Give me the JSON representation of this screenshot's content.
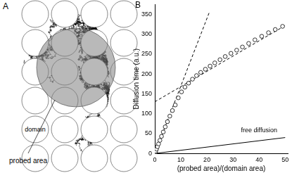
{
  "panel_a": {
    "label": "A",
    "domain_label": "domain",
    "probed_area_label": "probed area"
  },
  "chart_data": {
    "type": "scatter",
    "title": "B",
    "x_label": "(probed area)/(domain area)",
    "y_label": "Diffusion time (a.u.)",
    "xlim": [
      0,
      51
    ],
    "xticks": [
      0,
      10,
      20,
      30,
      40,
      50
    ],
    "ylim": [
      0,
      375
    ],
    "yticks": [
      0,
      50,
      100,
      150,
      200,
      250,
      300,
      350
    ],
    "grid": false,
    "series": [
      {
        "type": "scatter",
        "marker": "circle",
        "color": "#000000",
        "x": [
          0.04,
          0.16,
          0.36,
          0.64,
          1,
          1.44,
          1.96,
          2.56,
          3.24,
          4,
          4.84,
          5.76,
          6.76,
          7.84,
          9,
          10.24,
          11.56,
          12.96,
          14.44,
          16,
          17.6,
          19.4,
          21.2,
          23,
          25,
          27,
          29.2,
          31.4,
          33.6,
          36,
          38.4,
          41,
          43.6,
          46.2,
          49
        ],
        "values": [
          1,
          3,
          6,
          11,
          17,
          24,
          33,
          43,
          54,
          67,
          80,
          94,
          108,
          122,
          140,
          155,
          167,
          177,
          187,
          196,
          204,
          212,
          220,
          228,
          236,
          244,
          252,
          260,
          268,
          277,
          286,
          295,
          304,
          312,
          320
        ]
      },
      {
        "type": "line",
        "line_style": "dashed",
        "color": "#000000",
        "x": [
          0,
          21
        ],
        "values": [
          0,
          357
        ]
      },
      {
        "type": "line",
        "line_style": "dashed",
        "color": "#000000",
        "x": [
          0,
          50
        ],
        "values": [
          130,
          322
        ]
      },
      {
        "type": "line",
        "line_style": "solid",
        "color": "#000000",
        "x": [
          0,
          50
        ],
        "values": [
          0,
          40
        ]
      }
    ],
    "annotations": [
      {
        "text": "free diffusion",
        "x": 40,
        "y": 50
      }
    ]
  }
}
